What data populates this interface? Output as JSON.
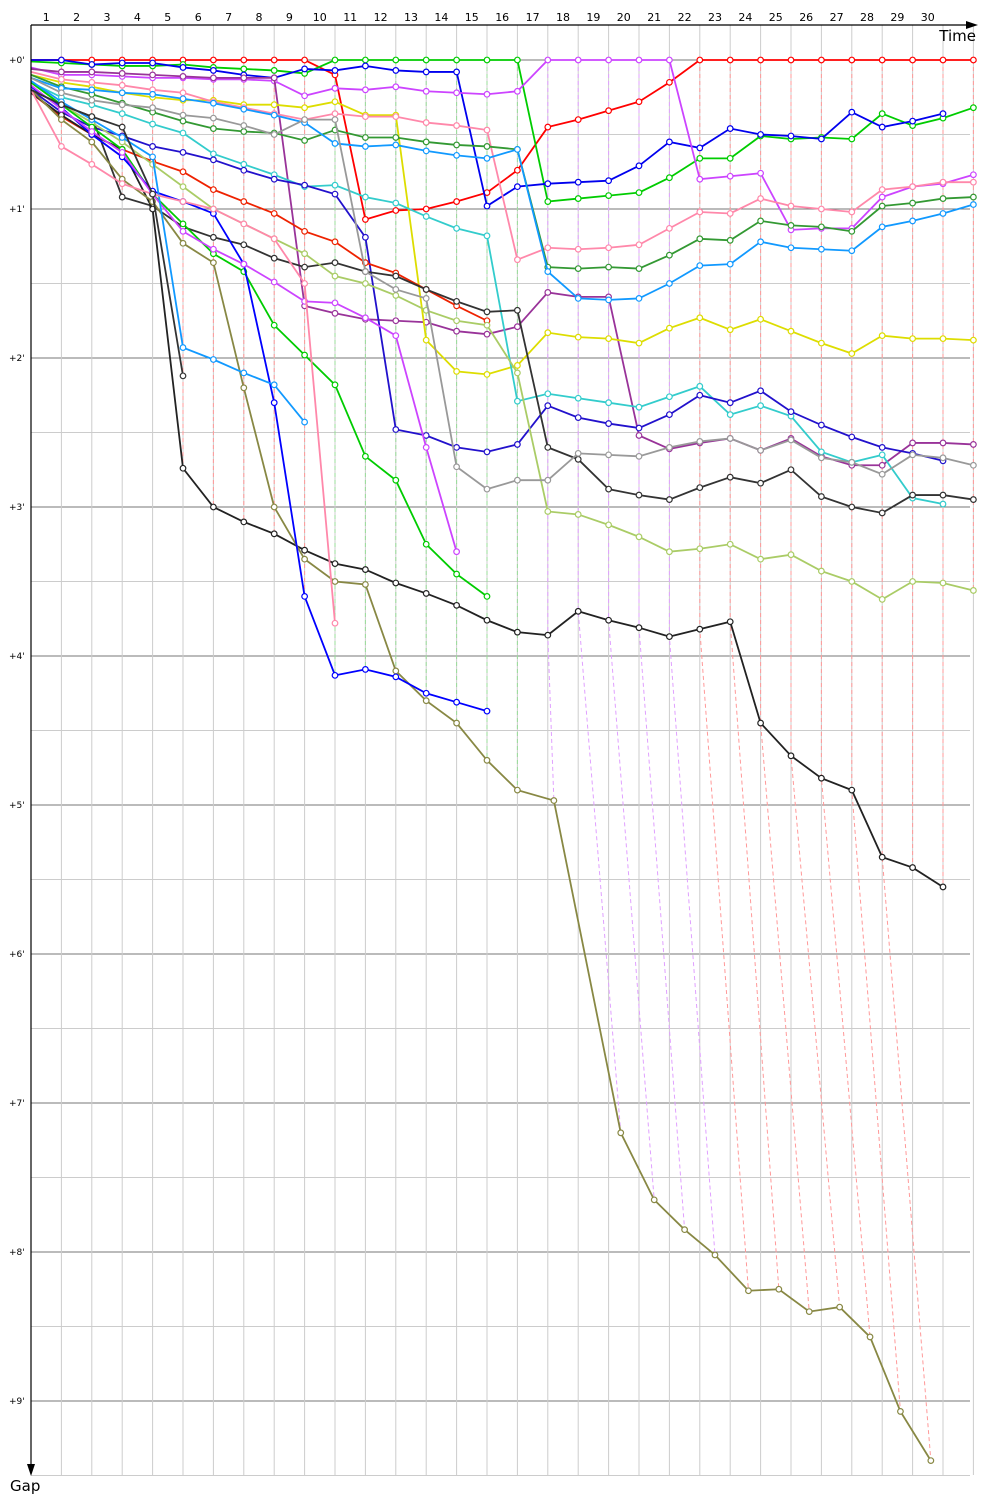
{
  "chart_data": {
    "type": "line",
    "xlabel": "Time",
    "ylabel": "Gap",
    "x_tick_labels": [
      "1",
      "2",
      "3",
      "4",
      "5",
      "6",
      "7",
      "8",
      "9",
      "10",
      "11",
      "12",
      "13",
      "14",
      "15",
      "16",
      "17",
      "18",
      "19",
      "20",
      "21",
      "22",
      "23",
      "24",
      "25",
      "26",
      "27",
      "28",
      "29",
      "30"
    ],
    "y_tick_labels": [
      "+0'",
      "+1'",
      "+2'",
      "+3'",
      "+4'",
      "+5'",
      "+6'",
      "+7'",
      "+8'",
      "+9'"
    ],
    "y_unit": "minutes",
    "xlim": [
      0,
      31
    ],
    "ylim": [
      0,
      9.5
    ],
    "grid": true,
    "series": [
      {
        "color": "#ff0000",
        "values": [
          0,
          0,
          0,
          0,
          0,
          0,
          0,
          0,
          0,
          0,
          0.1,
          1.07,
          1.01,
          1.0,
          0.95,
          0.89,
          0.74,
          0.45,
          0.4,
          0.34,
          0.28,
          0.15,
          0,
          0,
          0,
          0,
          0,
          0,
          0,
          0,
          0,
          0
        ]
      },
      {
        "color": "#00cc00",
        "values": [
          0.01,
          0.02,
          0.03,
          0.04,
          0.04,
          0.03,
          0.05,
          0.06,
          0.07,
          0.09,
          0,
          0,
          0,
          0,
          0,
          0,
          0,
          0.95,
          0.93,
          0.91,
          0.89,
          0.79,
          0.66,
          0.66,
          0.51,
          0.53,
          0.52,
          0.53,
          0.36,
          0.44,
          0.39,
          0.32
        ]
      },
      {
        "color": "#0000ee",
        "values": [
          0,
          0,
          0.03,
          0.02,
          0.02,
          0.05,
          0.07,
          0.1,
          0.12,
          0.06,
          0.07,
          0.04,
          0.07,
          0.08,
          0.08,
          0.98,
          0.85,
          0.83,
          0.82,
          0.81,
          0.71,
          0.55,
          0.59,
          0.46,
          0.5,
          0.51,
          0.53,
          0.35,
          0.45,
          0.41,
          0.36
        ]
      },
      {
        "color": "#cc44ff",
        "values": [
          0.05,
          0.1,
          0.1,
          0.11,
          0.12,
          0.12,
          0.13,
          0.13,
          0.14,
          0.24,
          0.19,
          0.2,
          0.18,
          0.21,
          0.22,
          0.23,
          0.21,
          0,
          0,
          0,
          0,
          0,
          0.8,
          0.78,
          0.76,
          1.14,
          1.13,
          1.13,
          0.92,
          0.85,
          0.83,
          0.77
        ]
      },
      {
        "color": "#993399",
        "values": [
          0.06,
          0.08,
          0.08,
          0.09,
          0.1,
          0.11,
          0.12,
          0.12,
          0.12,
          1.65,
          1.7,
          1.74,
          1.75,
          1.76,
          1.82,
          1.84,
          1.79,
          1.56,
          1.59,
          1.59,
          2.52,
          2.61,
          2.57,
          2.54,
          2.62,
          2.54,
          2.66,
          2.72,
          2.72,
          2.57,
          2.57,
          2.58
        ]
      },
      {
        "color": "#dddd00",
        "values": [
          0.1,
          0.15,
          0.18,
          0.22,
          0.25,
          0.27,
          0.27,
          0.3,
          0.3,
          0.32,
          0.28,
          0.37,
          0.37,
          1.88,
          2.09,
          2.11,
          2.05,
          1.83,
          1.86,
          1.87,
          1.9,
          1.8,
          1.73,
          1.81,
          1.74,
          1.82,
          1.9,
          1.97,
          1.85,
          1.87,
          1.87,
          1.88
        ]
      },
      {
        "color": "#ff88aa",
        "values": [
          0.08,
          0.13,
          0.15,
          0.17,
          0.2,
          0.22,
          0.28,
          0.32,
          0.36,
          0.4,
          0.36,
          0.38,
          0.38,
          0.42,
          0.44,
          0.47,
          1.34,
          1.26,
          1.27,
          1.26,
          1.24,
          1.13,
          1.02,
          1.03,
          0.93,
          0.98,
          1.0,
          1.02,
          0.87,
          0.85,
          0.82,
          0.82
        ]
      },
      {
        "color": "#339933",
        "values": [
          0.1,
          0.18,
          0.23,
          0.29,
          0.35,
          0.41,
          0.46,
          0.48,
          0.49,
          0.54,
          0.47,
          0.52,
          0.52,
          0.55,
          0.57,
          0.58,
          0.6,
          1.39,
          1.4,
          1.39,
          1.4,
          1.31,
          1.2,
          1.21,
          1.08,
          1.11,
          1.12,
          1.15,
          0.98,
          0.96,
          0.93,
          0.92
        ]
      },
      {
        "color": "#1199ff",
        "values": [
          0.12,
          0.19,
          0.2,
          0.22,
          0.23,
          0.26,
          0.29,
          0.33,
          0.37,
          0.42,
          0.56,
          0.58,
          0.57,
          0.61,
          0.64,
          0.66,
          0.6,
          1.42,
          1.6,
          1.61,
          1.6,
          1.5,
          1.38,
          1.37,
          1.22,
          1.26,
          1.27,
          1.28,
          1.12,
          1.08,
          1.03,
          0.97
        ]
      },
      {
        "color": "#33cccc",
        "values": [
          0.15,
          0.25,
          0.3,
          0.36,
          0.43,
          0.49,
          0.63,
          0.7,
          0.77,
          0.85,
          0.84,
          0.92,
          0.96,
          1.05,
          1.13,
          1.18,
          2.29,
          2.24,
          2.27,
          2.3,
          2.33,
          2.26,
          2.19,
          2.38,
          2.32,
          2.39,
          2.63,
          2.7,
          2.65,
          2.94,
          2.98
        ]
      },
      {
        "color": "#2211cc",
        "values": [
          0.2,
          0.35,
          0.45,
          0.51,
          0.58,
          0.62,
          0.67,
          0.74,
          0.8,
          0.84,
          0.9,
          1.19,
          2.48,
          2.52,
          2.6,
          2.63,
          2.58,
          2.32,
          2.4,
          2.44,
          2.47,
          2.38,
          2.25,
          2.3,
          2.22,
          2.36,
          2.45,
          2.53,
          2.6,
          2.64,
          2.69
        ]
      },
      {
        "color": "#ee2200",
        "values": [
          0.22,
          0.38,
          0.5,
          0.6,
          0.68,
          0.75,
          0.87,
          0.95,
          1.03,
          1.15,
          1.22,
          1.36,
          1.43,
          1.54,
          1.65,
          1.75
        ]
      },
      {
        "color": "#333333",
        "values": [
          0.2,
          0.3,
          0.38,
          0.92,
          0.98,
          1.12,
          1.19,
          1.24,
          1.33,
          1.39,
          1.36,
          1.42,
          1.45,
          1.54,
          1.62,
          1.69,
          1.68,
          2.6,
          2.68,
          2.88,
          2.92,
          2.95,
          2.87,
          2.8,
          2.84,
          2.75,
          2.93,
          3.0,
          3.04,
          2.92,
          2.92,
          2.95
        ]
      },
      {
        "color": "#222222",
        "values": [
          0.22,
          0.37,
          0.5,
          0.6,
          1.0,
          2.74,
          3.0,
          3.1,
          3.18,
          3.29,
          3.38,
          3.42,
          3.51,
          3.58,
          3.66,
          3.76,
          3.84,
          3.86,
          3.7,
          3.76,
          3.81,
          3.87,
          3.82,
          3.77,
          4.45,
          4.67,
          4.82,
          4.9,
          5.35,
          5.42,
          5.55
        ]
      },
      {
        "color": "#888844",
        "x": [
          0,
          1,
          2,
          3,
          4,
          5,
          6,
          7,
          8,
          9,
          10,
          11,
          12,
          13,
          14,
          15,
          16,
          17.2,
          19.4,
          20.5,
          21.5,
          22.5,
          23.6,
          24.6,
          25.6,
          26.6,
          27.6,
          28.6,
          29.6
        ],
        "values": [
          0.2,
          0.4,
          0.55,
          0.8,
          0.95,
          1.23,
          1.36,
          2.2,
          3.0,
          3.35,
          3.5,
          3.52,
          4.1,
          4.3,
          4.45,
          4.7,
          4.9,
          4.97,
          7.2,
          7.65,
          7.85,
          8.02,
          8.26,
          8.25,
          8.4,
          8.37,
          8.57,
          9.07,
          9.4
        ]
      },
      {
        "color": "#aacc66",
        "values": [
          0.15,
          0.3,
          0.42,
          0.55,
          0.7,
          0.85,
          1.0,
          1.1,
          1.2,
          1.3,
          1.45,
          1.5,
          1.58,
          1.68,
          1.75,
          1.78,
          2.1,
          3.03,
          3.05,
          3.12,
          3.2,
          3.3,
          3.28,
          3.25,
          3.35,
          3.32,
          3.43,
          3.5,
          3.62,
          3.5,
          3.51,
          3.56
        ]
      },
      {
        "color": "#999999",
        "values": [
          0.12,
          0.22,
          0.27,
          0.3,
          0.32,
          0.37,
          0.39,
          0.44,
          0.5,
          0.4,
          0.4,
          1.42,
          1.54,
          1.6,
          2.73,
          2.88,
          2.82,
          2.82,
          2.64,
          2.65,
          2.66,
          2.6,
          2.56,
          2.54,
          2.62,
          2.55,
          2.67,
          2.7,
          2.78,
          2.65,
          2.67,
          2.72
        ]
      },
      {
        "color": "#00cc00",
        "values": [
          0.15,
          0.3,
          0.45,
          0.6,
          0.9,
          1.1,
          1.3,
          1.42,
          1.78,
          1.98,
          2.18,
          2.66,
          2.82,
          3.25,
          3.45,
          3.6
        ]
      },
      {
        "color": "#0000ff",
        "values": [
          0.18,
          0.32,
          0.5,
          0.65,
          0.88,
          0.95,
          1.03,
          1.37,
          2.3,
          3.6,
          4.13,
          4.09,
          4.14,
          4.25,
          4.31,
          4.37
        ]
      },
      {
        "color": "#cc44ff",
        "values": [
          0.17,
          0.33,
          0.48,
          0.62,
          0.9,
          1.15,
          1.27,
          1.37,
          1.49,
          1.62,
          1.63,
          1.73,
          1.85,
          2.6,
          3.3
        ]
      },
      {
        "color": "#1199ff",
        "values": [
          0.14,
          0.28,
          0.4,
          0.52,
          0.65,
          1.93,
          2.01,
          2.1,
          2.18,
          2.43
        ]
      },
      {
        "color": "#ff88aa",
        "values": [
          0.2,
          0.58,
          0.7,
          0.83,
          0.9,
          0.95,
          1.0,
          1.1,
          1.2,
          1.5,
          3.78
        ]
      },
      {
        "color": "#333333",
        "values": [
          0.2,
          0.3,
          0.38,
          0.45,
          0.9,
          2.12
        ]
      }
    ]
  }
}
